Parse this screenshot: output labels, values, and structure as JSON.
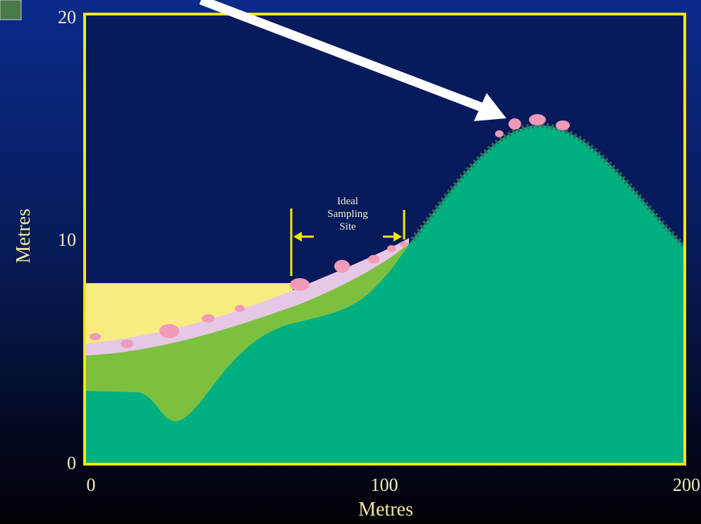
{
  "y_axis": {
    "label": "Metres",
    "ticks": [
      "20",
      "10",
      "0"
    ]
  },
  "x_axis": {
    "label": "Metres",
    "ticks": [
      "0",
      "100",
      "200"
    ]
  },
  "annotation": {
    "lines": [
      "Ideal",
      "Sampling",
      "Site"
    ]
  }
}
